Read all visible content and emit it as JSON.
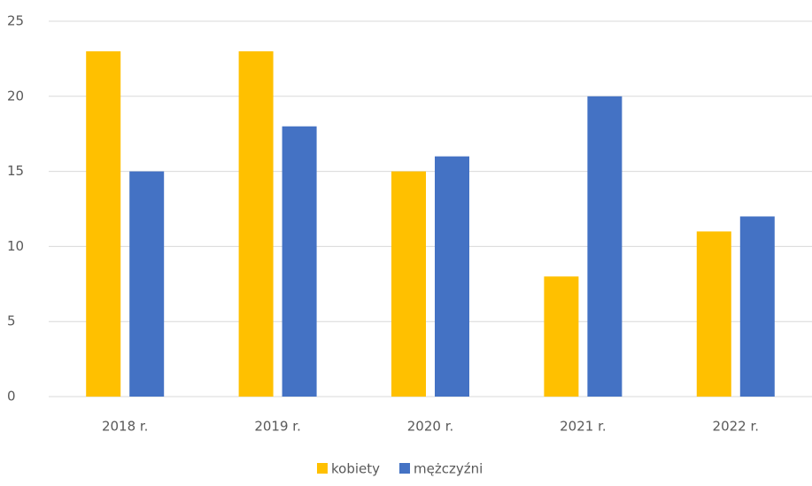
{
  "chart_data": {
    "type": "bar",
    "categories": [
      "2018 r.",
      "2019 r.",
      "2020 r.",
      "2021 r.",
      "2022 r."
    ],
    "series": [
      {
        "name": "kobiety",
        "color": "#ffc000",
        "values": [
          23,
          23,
          15,
          8,
          11
        ]
      },
      {
        "name": "mężczyźni",
        "color": "#4472c4",
        "values": [
          15,
          18,
          16,
          20,
          12
        ]
      }
    ],
    "ylim": [
      0,
      25
    ],
    "yticks": [
      0,
      5,
      10,
      15,
      20,
      25
    ],
    "grid": true,
    "legend": "bottom"
  }
}
